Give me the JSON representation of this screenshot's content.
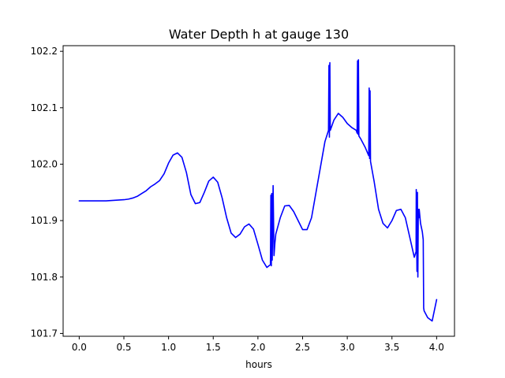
{
  "chart_data": {
    "type": "line",
    "title": "Water Depth h at gauge 130",
    "xlabel": "hours",
    "ylabel": "",
    "xlim": [
      -0.18,
      4.2
    ],
    "ylim": [
      101.695,
      102.21
    ],
    "x_ticks": [
      0,
      0.5,
      1,
      1.5,
      2,
      2.5,
      3,
      3.5,
      4
    ],
    "x_tick_labels": [
      "0.0",
      "0.5",
      "1.0",
      "1.5",
      "2.0",
      "2.5",
      "3.0",
      "3.5",
      "4.0"
    ],
    "y_ticks": [
      101.7,
      101.8,
      101.9,
      102.0,
      102.1,
      102.2
    ],
    "y_tick_labels": [
      "101.7",
      "101.8",
      "101.9",
      "102.0",
      "102.1",
      "102.2"
    ],
    "grid": false,
    "legend": "none",
    "series": [
      {
        "color": "#0000ff",
        "x": [
          0.0,
          0.1,
          0.2,
          0.3,
          0.4,
          0.5,
          0.55,
          0.6,
          0.65,
          0.7,
          0.75,
          0.8,
          0.85,
          0.9,
          0.95,
          1.0,
          1.05,
          1.1,
          1.15,
          1.2,
          1.25,
          1.3,
          1.35,
          1.4,
          1.45,
          1.5,
          1.55,
          1.6,
          1.65,
          1.7,
          1.75,
          1.8,
          1.85,
          1.9,
          1.95,
          2.0,
          2.05,
          2.1,
          2.14,
          2.145,
          2.15,
          2.155,
          2.16,
          2.17,
          2.18,
          2.19,
          2.2,
          2.25,
          2.3,
          2.35,
          2.4,
          2.45,
          2.5,
          2.55,
          2.6,
          2.65,
          2.7,
          2.75,
          2.79,
          2.795,
          2.8,
          2.805,
          2.81,
          2.85,
          2.9,
          2.95,
          3.0,
          3.05,
          3.1,
          3.11,
          3.115,
          3.12,
          3.125,
          3.13,
          3.15,
          3.2,
          3.24,
          3.245,
          3.25,
          3.255,
          3.26,
          3.3,
          3.35,
          3.4,
          3.45,
          3.5,
          3.55,
          3.6,
          3.65,
          3.7,
          3.75,
          3.77,
          3.772,
          3.78,
          3.785,
          3.79,
          3.795,
          3.8,
          3.805,
          3.82,
          3.84,
          3.85,
          3.855,
          3.86,
          3.9,
          3.95,
          4.0
        ],
        "y": [
          101.935,
          101.935,
          101.935,
          101.935,
          101.936,
          101.937,
          101.938,
          101.94,
          101.943,
          101.948,
          101.953,
          101.96,
          101.965,
          101.971,
          101.983,
          102.002,
          102.016,
          102.02,
          102.012,
          101.985,
          101.946,
          101.93,
          101.932,
          101.95,
          101.97,
          101.977,
          101.968,
          101.94,
          101.905,
          101.878,
          101.87,
          101.876,
          101.889,
          101.894,
          101.885,
          101.858,
          101.83,
          101.817,
          101.822,
          101.945,
          101.82,
          101.948,
          101.83,
          101.962,
          101.838,
          101.86,
          101.876,
          101.905,
          101.926,
          101.927,
          101.916,
          101.9,
          101.884,
          101.884,
          101.905,
          101.95,
          101.995,
          102.04,
          102.06,
          102.175,
          102.048,
          102.18,
          102.06,
          102.078,
          102.09,
          102.083,
          102.072,
          102.065,
          102.06,
          102.055,
          102.183,
          102.053,
          102.185,
          102.05,
          102.045,
          102.03,
          102.015,
          102.135,
          102.01,
          102.13,
          102.005,
          101.97,
          101.92,
          101.895,
          101.887,
          101.9,
          101.918,
          101.92,
          101.905,
          101.87,
          101.835,
          101.845,
          101.955,
          101.81,
          101.95,
          101.8,
          101.92,
          101.905,
          101.92,
          101.895,
          101.88,
          101.866,
          101.745,
          101.74,
          101.728,
          101.722,
          101.76
        ]
      }
    ]
  }
}
